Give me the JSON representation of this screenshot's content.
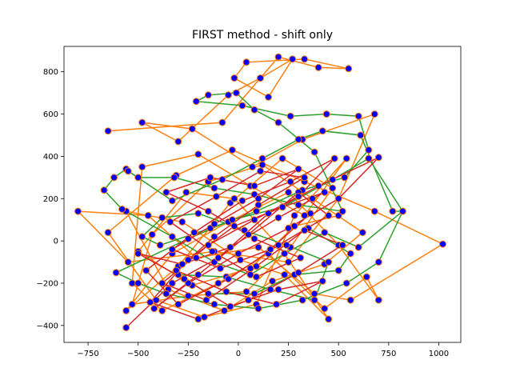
{
  "chart_data": {
    "type": "line",
    "title": "FIRST method - shift only",
    "xlabel": "",
    "ylabel": "",
    "xlim": [
      -870,
      1110
    ],
    "ylim": [
      -480,
      920
    ],
    "xticks": [
      -750,
      -500,
      -250,
      0,
      250,
      500,
      750,
      1000
    ],
    "xtick_labels": [
      "−750",
      "−500",
      "−250",
      "0",
      "250",
      "500",
      "750",
      "1000"
    ],
    "yticks": [
      -400,
      -200,
      0,
      200,
      400,
      600,
      800
    ],
    "ytick_labels": [
      "−400",
      "−200",
      "0",
      "200",
      "400",
      "600",
      "800"
    ],
    "grid": false,
    "marker": {
      "face": "#0000ff",
      "edge": "#ff7f0e"
    },
    "series": [
      {
        "color": "#ff7f0e",
        "points": [
          [
            -650,
            520
          ],
          [
            -80,
            560
          ],
          [
            200,
            870
          ],
          [
            400,
            820
          ],
          [
            550,
            815
          ],
          [
            330,
            860
          ],
          [
            40,
            845
          ],
          [
            -20,
            770
          ],
          [
            150,
            680
          ],
          [
            270,
            860
          ],
          [
            110,
            770
          ],
          [
            -50,
            690
          ],
          [
            -300,
            470
          ],
          [
            -480,
            560
          ],
          [
            -230,
            530
          ],
          [
            70,
            350
          ],
          [
            320,
            480
          ],
          [
            680,
            600
          ],
          [
            500,
            200
          ],
          [
            250,
            -100
          ],
          [
            -120,
            -50
          ],
          [
            -550,
            -100
          ],
          [
            -800,
            140
          ],
          [
            -450,
            120
          ],
          [
            -210,
            -80
          ],
          [
            100,
            -30
          ],
          [
            380,
            -250
          ],
          [
            560,
            -280
          ],
          [
            1020,
            -15
          ],
          [
            680,
            140
          ],
          [
            330,
            280
          ],
          [
            -30,
            430
          ],
          [
            -310,
            310
          ],
          [
            -650,
            40
          ],
          [
            -410,
            -280
          ],
          [
            -170,
            -360
          ],
          [
            90,
            -300
          ],
          [
            280,
            120
          ],
          [
            540,
            390
          ],
          [
            330,
            120
          ],
          [
            60,
            260
          ],
          [
            -200,
            410
          ],
          [
            -480,
            350
          ],
          [
            -530,
            -200
          ],
          [
            -380,
            -330
          ],
          [
            -100,
            -200
          ],
          [
            150,
            -60
          ],
          [
            430,
            -320
          ],
          [
            640,
            -170
          ],
          [
            700,
            -280
          ],
          [
            500,
            -20
          ],
          [
            250,
            230
          ],
          [
            -50,
            90
          ],
          [
            -330,
            -60
          ],
          [
            -560,
            -330
          ],
          [
            -300,
            -120
          ],
          [
            -40,
            180
          ],
          [
            220,
            390
          ],
          [
            470,
            250
          ],
          [
            260,
            -30
          ],
          [
            40,
            -240
          ],
          [
            -250,
            -260
          ],
          [
            -530,
            -300
          ],
          [
            -430,
            30
          ],
          [
            -150,
            280
          ],
          [
            120,
            360
          ],
          [
            370,
            200
          ],
          [
            620,
            40
          ],
          [
            430,
            -110
          ],
          [
            170,
            -190
          ],
          [
            -70,
            -330
          ],
          [
            -350,
            -230
          ],
          [
            -560,
            140
          ],
          [
            -280,
            90
          ],
          [
            10,
            -90
          ],
          [
            230,
            -160
          ],
          [
            450,
            -370
          ],
          [
            200,
            -20
          ],
          [
            -20,
            200
          ],
          [
            -260,
            230
          ],
          [
            -500,
            -50
          ],
          [
            -230,
            -210
          ],
          [
            60,
            -130
          ],
          [
            280,
            70
          ],
          [
            500,
            120
          ]
        ]
      },
      {
        "color": "#2ca02c",
        "points": [
          [
            -560,
            340
          ],
          [
            -620,
            300
          ],
          [
            -670,
            240
          ],
          [
            -580,
            150
          ],
          [
            -330,
            20
          ],
          [
            -120,
            -100
          ],
          [
            60,
            -160
          ],
          [
            230,
            -60
          ],
          [
            430,
            40
          ],
          [
            600,
            -30
          ],
          [
            820,
            140
          ],
          [
            700,
            -100
          ],
          [
            540,
            -200
          ],
          [
            320,
            -280
          ],
          [
            100,
            -320
          ],
          [
            -120,
            -300
          ],
          [
            -360,
            -250
          ],
          [
            -500,
            -200
          ],
          [
            -610,
            -150
          ],
          [
            -250,
            10
          ],
          [
            -30,
            100
          ],
          [
            220,
            160
          ],
          [
            470,
            290
          ],
          [
            650,
            390
          ],
          [
            820,
            140
          ],
          [
            770,
            140
          ],
          [
            610,
            500
          ],
          [
            420,
            520
          ],
          [
            300,
            480
          ],
          [
            120,
            390
          ],
          [
            -80,
            290
          ],
          [
            -330,
            190
          ],
          [
            -550,
            330
          ],
          [
            -500,
            300
          ],
          [
            -320,
            300
          ],
          [
            -120,
            250
          ],
          [
            80,
            220
          ],
          [
            300,
            170
          ],
          [
            520,
            140
          ],
          [
            380,
            420
          ],
          [
            200,
            560
          ],
          [
            80,
            620
          ],
          [
            -10,
            700
          ],
          [
            -150,
            690
          ],
          [
            -210,
            660
          ],
          [
            20,
            640
          ],
          [
            260,
            590
          ],
          [
            440,
            600
          ],
          [
            600,
            590
          ],
          [
            650,
            430
          ],
          [
            530,
            300
          ],
          [
            320,
            240
          ],
          [
            90,
            140
          ],
          [
            -140,
            60
          ],
          [
            -390,
            -20
          ],
          [
            -480,
            20
          ],
          [
            -380,
            110
          ],
          [
            -200,
            130
          ],
          [
            30,
            50
          ],
          [
            240,
            -20
          ],
          [
            450,
            -100
          ],
          [
            380,
            -280
          ],
          [
            160,
            -230
          ],
          [
            -60,
            -170
          ],
          [
            -300,
            -160
          ],
          [
            -150,
            -250
          ],
          [
            80,
            -250
          ],
          [
            280,
            -160
          ],
          [
            500,
            -140
          ],
          [
            560,
            -60
          ],
          [
            350,
            60
          ]
        ]
      },
      {
        "color": "#d62728",
        "points": [
          [
            -560,
            -410
          ],
          [
            -330,
            -200
          ],
          [
            -100,
            -80
          ],
          [
            150,
            130
          ],
          [
            400,
            260
          ],
          [
            700,
            395
          ],
          [
            500,
            200
          ],
          [
            250,
            60
          ],
          [
            0,
            -60
          ],
          [
            -250,
            -200
          ],
          [
            -420,
            -320
          ],
          [
            -200,
            -160
          ],
          [
            50,
            30
          ],
          [
            300,
            230
          ],
          [
            450,
            120
          ],
          [
            200,
            -20
          ],
          [
            -50,
            -180
          ],
          [
            -300,
            -300
          ],
          [
            -460,
            -140
          ],
          [
            -220,
            40
          ],
          [
            20,
            190
          ],
          [
            260,
            280
          ],
          [
            480,
            390
          ],
          [
            300,
            210
          ],
          [
            80,
            100
          ],
          [
            -150,
            -20
          ],
          [
            -380,
            -200
          ],
          [
            -160,
            -280
          ],
          [
            90,
            -120
          ],
          [
            330,
            50
          ],
          [
            520,
            -20
          ],
          [
            300,
            -150
          ],
          [
            50,
            -280
          ],
          [
            -200,
            -370
          ],
          [
            -440,
            -290
          ],
          [
            -250,
            -90
          ],
          [
            -20,
            70
          ],
          [
            220,
            160
          ],
          [
            430,
            230
          ],
          [
            200,
            110
          ],
          [
            -40,
            -30
          ],
          [
            -280,
            -110
          ],
          [
            -500,
            -60
          ],
          [
            -270,
            -180
          ],
          [
            -40,
            -310
          ],
          [
            200,
            -230
          ],
          [
            420,
            -190
          ],
          [
            190,
            -300
          ],
          [
            -60,
            -240
          ],
          [
            -310,
            -140
          ],
          [
            -120,
            20
          ],
          [
            100,
            170
          ],
          [
            330,
            300
          ],
          [
            110,
            330
          ],
          [
            -110,
            210
          ],
          [
            -340,
            90
          ],
          [
            -130,
            -50
          ],
          [
            90,
            -170
          ],
          [
            310,
            -80
          ],
          [
            80,
            10
          ],
          [
            -150,
            140
          ],
          [
            -360,
            230
          ],
          [
            -140,
            300
          ],
          [
            80,
            260
          ],
          [
            300,
            340
          ],
          [
            100,
            200
          ],
          [
            -120,
            80
          ],
          [
            -330,
            -40
          ],
          [
            -90,
            -130
          ],
          [
            160,
            -40
          ],
          [
            360,
            130
          ]
        ]
      }
    ]
  }
}
